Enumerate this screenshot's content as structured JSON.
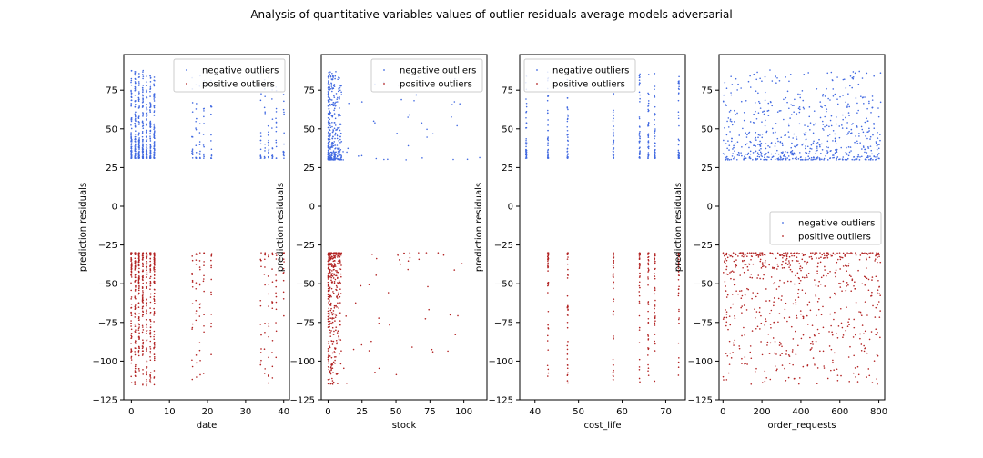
{
  "title": "Analysis of quantitative variables values of outlier residuals average models adversarial",
  "colors": {
    "negative": "#4169e1",
    "positive": "#b22222"
  },
  "chart_data": [
    {
      "type": "scatter",
      "xlabel": "date",
      "ylabel": "prediction residuals",
      "xlim": [
        -2,
        41.5
      ],
      "ylim": [
        -125,
        98
      ],
      "xticks": [
        0,
        10,
        20,
        30,
        40
      ],
      "yticks": [
        -125,
        -100,
        -75,
        -50,
        -25,
        0,
        25,
        50,
        75
      ],
      "legend": {
        "placement": "top-right",
        "entries": [
          "negative outliers",
          "positive outliers"
        ]
      },
      "series": [
        {
          "name": "negative outliers",
          "color": "#4169e1",
          "columns": [
            0,
            1,
            2,
            3,
            4,
            5,
            6,
            16,
            17,
            18,
            19,
            21,
            34,
            35,
            36,
            37,
            38,
            40
          ],
          "y_range": [
            31,
            88
          ],
          "density": "high-near-0"
        },
        {
          "name": "positive outliers",
          "color": "#b22222",
          "columns": [
            0,
            1,
            2,
            3,
            4,
            5,
            6,
            16,
            17,
            18,
            19,
            21,
            34,
            35,
            36,
            37,
            38,
            40
          ],
          "y_range": [
            -116,
            -30
          ],
          "density": "high-near-0"
        }
      ]
    },
    {
      "type": "scatter",
      "xlabel": "stock",
      "ylabel": "prediction residuals",
      "xlim": [
        -5,
        117
      ],
      "ylim": [
        -125,
        98
      ],
      "xticks": [
        0,
        25,
        50,
        75,
        100
      ],
      "yticks": [
        -125,
        -100,
        -75,
        -50,
        -25,
        0,
        25,
        50,
        75
      ],
      "legend": {
        "placement": "top-right",
        "entries": [
          "negative outliers",
          "positive outliers"
        ]
      },
      "series": [
        {
          "name": "negative outliers",
          "color": "#4169e1",
          "x_range": [
            0,
            112
          ],
          "y_range": [
            30,
            87
          ],
          "density": "skewed-to-low-x"
        },
        {
          "name": "positive outliers",
          "color": "#b22222",
          "x_range": [
            0,
            100
          ],
          "y_range": [
            -115,
            -30
          ],
          "density": "skewed-to-low-x"
        }
      ]
    },
    {
      "type": "scatter",
      "xlabel": "cost_life",
      "ylabel": "prediction residuals",
      "xlim": [
        36.5,
        74.5
      ],
      "ylim": [
        -125,
        98
      ],
      "xticks": [
        40,
        50,
        60,
        70
      ],
      "yticks": [
        -125,
        -100,
        -75,
        -50,
        -25,
        0,
        25,
        50,
        75
      ],
      "legend": {
        "placement": "top-left",
        "entries": [
          "negative outliers",
          "positive outliers"
        ]
      },
      "series": [
        {
          "name": "negative outliers",
          "color": "#4169e1",
          "columns": [
            38,
            43,
            47.5,
            58,
            64,
            66,
            67.5,
            73
          ],
          "y_range": [
            31,
            87
          ]
        },
        {
          "name": "positive outliers",
          "color": "#b22222",
          "columns": [
            43,
            47.5,
            58,
            64,
            66,
            67.5,
            73
          ],
          "y_range": [
            -115,
            -30
          ]
        }
      ]
    },
    {
      "type": "scatter",
      "xlabel": "order_requests",
      "ylabel": "prediction residuals",
      "xlim": [
        -20,
        830
      ],
      "ylim": [
        -125,
        98
      ],
      "xticks": [
        0,
        200,
        400,
        600,
        800
      ],
      "yticks": [
        -125,
        -100,
        -75,
        -50,
        -25,
        0,
        25,
        50,
        75
      ],
      "legend": {
        "placement": "center-right",
        "entries": [
          "negative outliers",
          "positive outliers"
        ]
      },
      "series": [
        {
          "name": "negative outliers",
          "color": "#4169e1",
          "x_range": [
            0,
            810
          ],
          "y_range": [
            30,
            88
          ],
          "density": "uniform-x"
        },
        {
          "name": "positive outliers",
          "color": "#b22222",
          "x_range": [
            0,
            810
          ],
          "y_range": [
            -115,
            -30
          ],
          "density": "uniform-x"
        }
      ]
    }
  ]
}
